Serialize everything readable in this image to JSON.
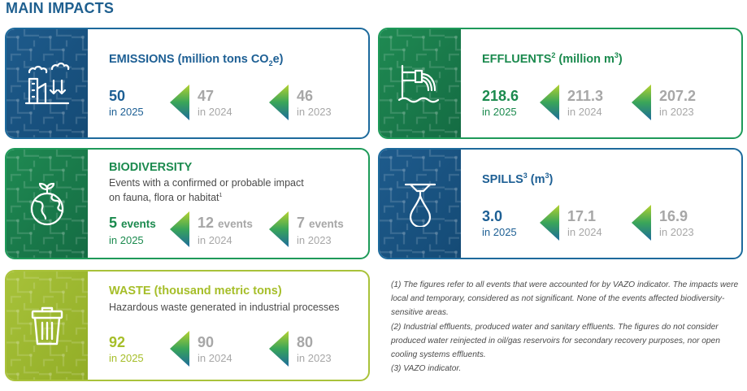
{
  "page": {
    "title": "MAIN IMPACTS"
  },
  "colors": {
    "blue": "#1d6a9c",
    "green": "#1e9a59",
    "lime": "#a9c23a",
    "grey": "#a7a7a7"
  },
  "emissions": {
    "icon": "factory-emissions-icon",
    "title_main": "EMISSIONS (million tons CO",
    "title_sub": "2",
    "title_end": "e)",
    "values": [
      {
        "number": "50",
        "year": "in 2025"
      },
      {
        "number": "47",
        "year": "in 2024"
      },
      {
        "number": "46",
        "year": "in 2023"
      }
    ]
  },
  "effluents": {
    "icon": "effluent-pipe-icon",
    "title_main": "EFFLUENTS",
    "title_sup": "2",
    "title_mid": " (million m",
    "title_sup2": "3",
    "title_end": ")",
    "values": [
      {
        "number": "218.6",
        "year": "in 2025"
      },
      {
        "number": "211.3",
        "year": "in 2024"
      },
      {
        "number": "207.2",
        "year": "in 2023"
      }
    ]
  },
  "biodiversity": {
    "icon": "globe-plant-icon",
    "title": "BIODIVERSITY",
    "subtitle_line1": "Events with a confirmed or probable impact",
    "subtitle_line2": "on fauna, flora or habitat",
    "subtitle_sup": "1",
    "unit": "events",
    "values": [
      {
        "number": "5",
        "year": "in 2025"
      },
      {
        "number": "12",
        "year": "in 2024"
      },
      {
        "number": "7",
        "year": "in 2023"
      }
    ]
  },
  "spills": {
    "icon": "drop-spill-icon",
    "title_main": "SPILLS",
    "title_sup": "3",
    "title_mid": " (m",
    "title_sup2": "3",
    "title_end": ")",
    "values": [
      {
        "number": "3.0",
        "year": "in 2025"
      },
      {
        "number": "17.1",
        "year": "in 2024"
      },
      {
        "number": "16.9",
        "year": "in 2023"
      }
    ]
  },
  "waste": {
    "icon": "trash-bin-icon",
    "title": "WASTE (thousand metric tons)",
    "subtitle": "Hazardous waste generated in industrial processes",
    "values": [
      {
        "number": "92",
        "year": "in 2025"
      },
      {
        "number": "90",
        "year": "in 2024"
      },
      {
        "number": "80",
        "year": "in 2023"
      }
    ]
  },
  "notes": [
    "(1) The figures refer to all events that were accounted for by VAZO indicator. The impacts were local and temporary, considered as not significant. None of the events affected biodiversity-sensitive areas.",
    "(2) Industrial effluents, produced water and sanitary effluents. The figures do not consider produced water reinjected in oil/gas reservoirs for secondary recovery purposes, nor open cooling systems effluents.",
    "(3) VAZO indicator."
  ]
}
